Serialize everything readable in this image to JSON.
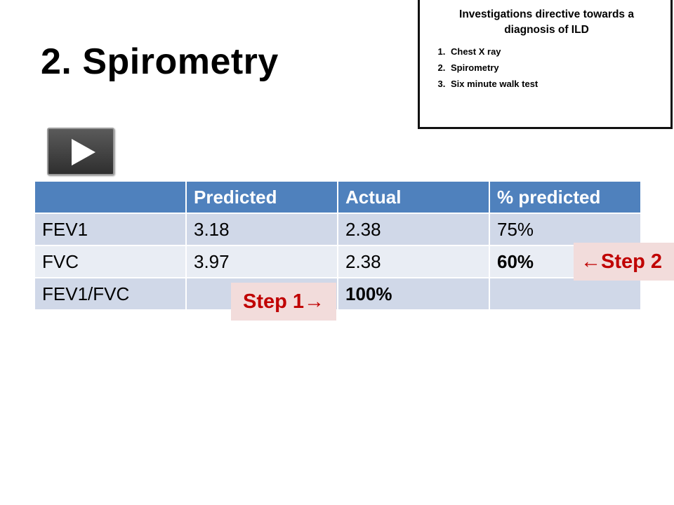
{
  "slide": {
    "title": "2. Spirometry"
  },
  "info_box": {
    "title": "Investigations directive towards a diagnosis of ILD",
    "items": [
      "Chest X ray",
      "Spirometry",
      "Six minute walk test"
    ]
  },
  "media": {
    "play_icon": "play-icon"
  },
  "table": {
    "headers": [
      "",
      "Predicted",
      "Actual",
      "% predicted"
    ],
    "rows": [
      [
        "FEV1",
        "3.18",
        "2.38",
        "75%"
      ],
      [
        "FVC",
        "3.97",
        "2.38",
        "60%"
      ],
      [
        "FEV1/FVC",
        "",
        "100%",
        ""
      ]
    ]
  },
  "callouts": {
    "step1": "Step 1→",
    "step2": "←Step 2"
  },
  "colors": {
    "header_bg": "#4f81bd",
    "row_dark": "#d0d8e8",
    "row_light": "#e9edf4",
    "callout_bg": "#f2dcdb",
    "callout_text": "#c00000"
  }
}
